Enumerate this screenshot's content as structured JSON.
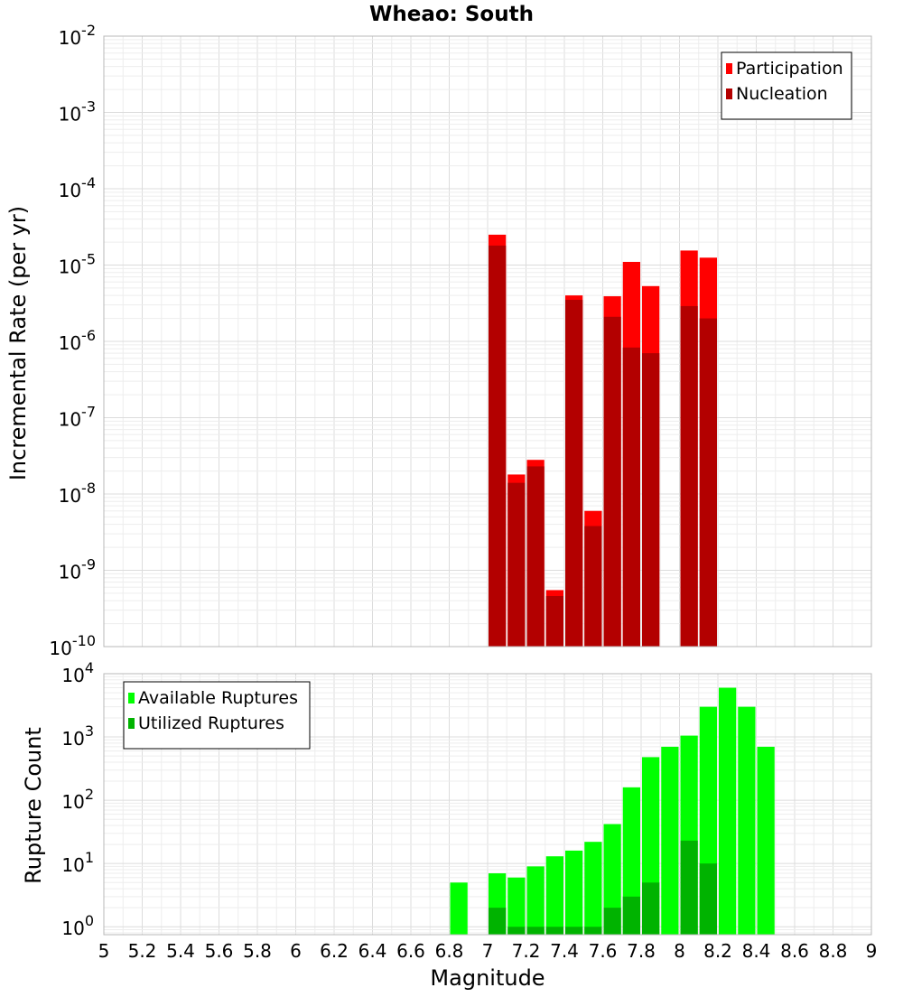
{
  "title": "Wheao: South",
  "xlabel": "Magnitude",
  "colors": {
    "participation": "#ff0000",
    "nucleation": "#b30000",
    "available": "#00ff00",
    "utilized": "#00b300"
  },
  "chart_data": [
    {
      "type": "bar",
      "ylabel": "Incremental Rate (per yr)",
      "yscale": "log",
      "ylim": [
        1e-10,
        0.01
      ],
      "xlim": [
        5,
        9
      ],
      "legend_position": "top-right",
      "series": [
        {
          "name": "Participation",
          "x": [
            7.05,
            7.15,
            7.25,
            7.35,
            7.45,
            7.55,
            7.65,
            7.75,
            7.85,
            8.05,
            8.15
          ],
          "values": [
            2.5e-05,
            1.8e-08,
            2.8e-08,
            5.5e-10,
            4e-06,
            6e-09,
            3.9e-06,
            1.1e-05,
            5.3e-06,
            1.55e-05,
            1.25e-05
          ]
        },
        {
          "name": "Nucleation",
          "x": [
            7.05,
            7.15,
            7.25,
            7.35,
            7.45,
            7.55,
            7.65,
            7.75,
            7.85,
            8.05,
            8.15
          ],
          "values": [
            1.8e-05,
            1.4e-08,
            2.3e-08,
            4.6e-10,
            3.5e-06,
            3.8e-09,
            2.1e-06,
            8.3e-07,
            7e-07,
            2.9e-06,
            2e-06
          ]
        }
      ]
    },
    {
      "type": "bar",
      "ylabel": "Rupture Count",
      "yscale": "log",
      "ylim": [
        0.75,
        10000
      ],
      "xlim": [
        5,
        9
      ],
      "xticks": [
        "5",
        "5.2",
        "5.4",
        "5.6",
        "5.8",
        "6",
        "6.2",
        "6.4",
        "6.6",
        "6.8",
        "7",
        "7.2",
        "7.4",
        "7.6",
        "7.8",
        "8",
        "8.2",
        "8.4",
        "8.6",
        "8.8",
        "9"
      ],
      "legend_position": "top-left",
      "series": [
        {
          "name": "Available Ruptures",
          "x": [
            6.85,
            7.05,
            7.15,
            7.25,
            7.35,
            7.45,
            7.55,
            7.65,
            7.75,
            7.85,
            7.95,
            8.05,
            8.15,
            8.25,
            8.35,
            8.45
          ],
          "values": [
            5,
            7,
            6,
            9,
            13,
            16,
            22,
            42,
            160,
            480,
            700,
            1050,
            3000,
            6000,
            3000,
            700
          ]
        },
        {
          "name": "Utilized Ruptures",
          "x": [
            7.05,
            7.15,
            7.25,
            7.35,
            7.45,
            7.55,
            7.65,
            7.75,
            7.85,
            8.05,
            8.15
          ],
          "values": [
            2,
            1,
            1,
            1,
            1,
            1,
            2,
            3,
            5,
            23,
            10
          ]
        }
      ]
    }
  ]
}
